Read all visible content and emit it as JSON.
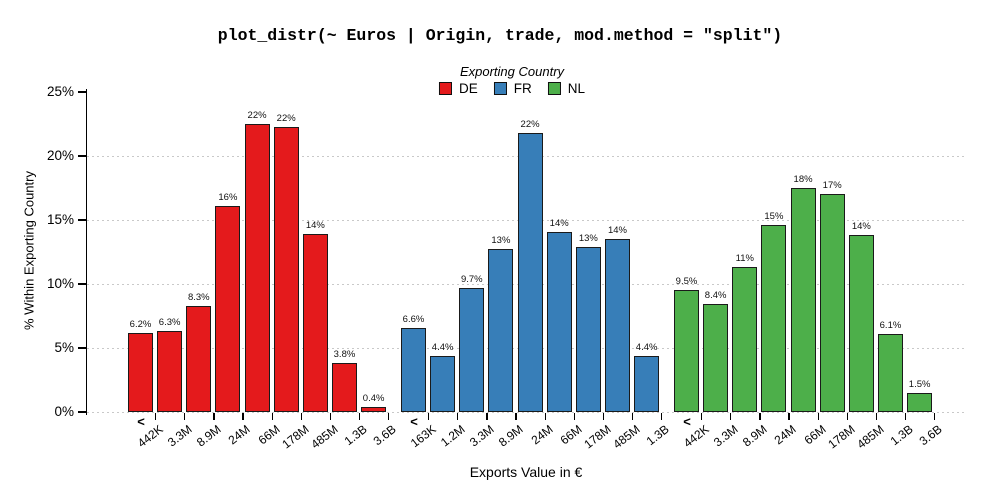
{
  "chart_data": {
    "type": "bar",
    "title": "plot_distr(~ Euros | Origin, trade, mod.method = \"split\")",
    "legend_title": "Exporting Country",
    "xlabel": "Exports Value in €",
    "ylabel": "% Within Exporting Country",
    "ylim": [
      0,
      25
    ],
    "y_ticks": [
      "0%",
      "5%",
      "10%",
      "15%",
      "20%",
      "25%"
    ],
    "y_tick_values": [
      0,
      5,
      10,
      15,
      20,
      25
    ],
    "grid_values": [
      0,
      5,
      10,
      15,
      20
    ],
    "grid": "dotted horizontal at every 5%, no gridline at 25%",
    "legend_position": "top-center",
    "less_than_marker": "<",
    "series": [
      {
        "name": "DE",
        "color": "#E41A1C",
        "bin_tick_labels": [
          "442K",
          "3.3M",
          "8.9M",
          "24M",
          "66M",
          "178M",
          "485M",
          "1.3B",
          "3.6B"
        ],
        "values": [
          6.2,
          6.3,
          8.3,
          16.1,
          22.5,
          22.3,
          13.9,
          3.8,
          0.4
        ],
        "labels": [
          "6.2%",
          "6.3%",
          "8.3%",
          "16%",
          "22%",
          "22%",
          "14%",
          "3.8%",
          "0.4%"
        ]
      },
      {
        "name": "FR",
        "color": "#377EB8",
        "bin_tick_labels": [
          "163K",
          "1.2M",
          "3.3M",
          "8.9M",
          "24M",
          "66M",
          "178M",
          "485M",
          "1.3B"
        ],
        "values": [
          6.6,
          4.4,
          9.7,
          12.7,
          21.8,
          14.1,
          12.9,
          13.5,
          4.4
        ],
        "labels": [
          "6.6%",
          "4.4%",
          "9.7%",
          "13%",
          "22%",
          "14%",
          "13%",
          "14%",
          "4.4%"
        ]
      },
      {
        "name": "NL",
        "color": "#4DAF4A",
        "bin_tick_labels": [
          "442K",
          "3.3M",
          "8.9M",
          "24M",
          "66M",
          "178M",
          "485M",
          "1.3B",
          "3.6B"
        ],
        "values": [
          9.5,
          8.4,
          11.3,
          14.6,
          17.5,
          17.0,
          13.8,
          6.1,
          1.5
        ],
        "labels": [
          "9.5%",
          "8.4%",
          "11%",
          "15%",
          "18%",
          "17%",
          "14%",
          "6.1%",
          "1.5%"
        ]
      }
    ],
    "colors": {
      "background": "#ffffff",
      "bar_border": "#1a1a1a",
      "grid_color": "#c9c9c9",
      "axis_color": "#000000"
    }
  }
}
